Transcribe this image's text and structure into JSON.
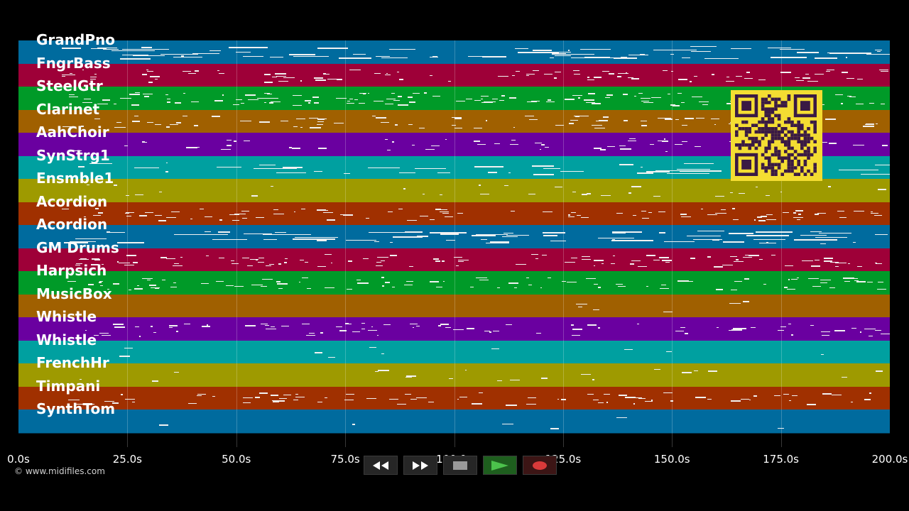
{
  "tracks": [
    {
      "label": "GrandPno",
      "color": "#006b9e"
    },
    {
      "label": "FngrBass",
      "color": "#9e0038"
    },
    {
      "label": "SteelGtr",
      "color": "#009a28"
    },
    {
      "label": "Clarinet",
      "color": "#a06000"
    },
    {
      "label": "AahChoir",
      "color": "#6a00a0"
    },
    {
      "label": "SynStrg1",
      "color": "#00a0a0"
    },
    {
      "label": "Ensmble1",
      "color": "#9e9a00"
    },
    {
      "label": "Acordion",
      "color": "#a03000"
    },
    {
      "label": "Acordion",
      "color": "#006b9e"
    },
    {
      "label": "GM Drums",
      "color": "#9e0038"
    },
    {
      "label": "Harpsich",
      "color": "#009a28"
    },
    {
      "label": "MusicBox",
      "color": "#a06000"
    },
    {
      "label": "Whistle",
      "color": "#6a00a0"
    },
    {
      "label": "Whistle",
      "color": "#00a0a0"
    },
    {
      "label": "FrenchHr",
      "color": "#9e9a00"
    },
    {
      "label": "Timpani",
      "color": "#a03000"
    },
    {
      "label": "SynthTom",
      "color": "#006b9e"
    }
  ],
  "time_axis": {
    "ticks": [
      "0.0s",
      "25.0s",
      "50.0s",
      "75.0s",
      "100.0s",
      "125.0s",
      "150.0s",
      "175.0s",
      "200.0s"
    ],
    "max_seconds": 200
  },
  "copyright": "© www.midifiles.com",
  "transport": {
    "rewind_icon": "rewind-icon",
    "fast_forward_icon": "fast-forward-icon",
    "stop_icon": "stop-icon",
    "play_icon": "play-icon",
    "record_icon": "record-icon"
  }
}
